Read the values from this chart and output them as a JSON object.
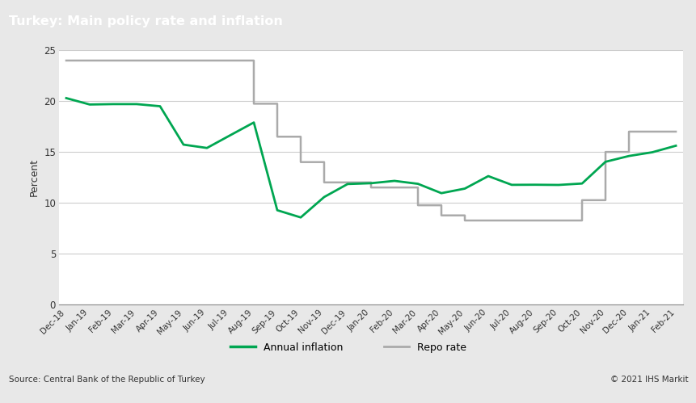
{
  "title": "Turkey: Main policy rate and inflation",
  "ylabel": "Percent",
  "source": "Source: Central Bank of the Republic of Turkey",
  "copyright": "© 2021 IHS Markit",
  "title_bg_color": "#787878",
  "title_text_color": "#ffffff",
  "plot_bg_color": "#ffffff",
  "outer_bg_color": "#e8e8e8",
  "ylim": [
    0,
    25
  ],
  "yticks": [
    0,
    5,
    10,
    15,
    20,
    25
  ],
  "inflation_color": "#00a651",
  "repo_color": "#aaaaaa",
  "x_labels": [
    "Dec-18",
    "Jan-19",
    "Feb-19",
    "Mar-19",
    "Apr-19",
    "May-19",
    "Jun-19",
    "Jul-19",
    "Aug-19",
    "Sep-19",
    "Oct-19",
    "Nov-19",
    "Dec-19",
    "Jan-20",
    "Feb-20",
    "Mar-20",
    "Apr-20",
    "May-20",
    "Jun-20",
    "Jul-20",
    "Aug-20",
    "Sep-20",
    "Oct-20",
    "Nov-20",
    "Dec-20",
    "Jan-21",
    "Feb-21"
  ],
  "inflation_values": [
    20.3,
    19.67,
    19.71,
    19.71,
    19.5,
    15.72,
    15.39,
    16.65,
    17.9,
    9.26,
    8.55,
    10.56,
    11.84,
    11.92,
    12.15,
    11.86,
    10.94,
    11.39,
    12.62,
    11.76,
    11.77,
    11.75,
    11.89,
    14.03,
    14.6,
    14.97,
    15.61
  ],
  "repo_rate": [
    24.0,
    24.0,
    24.0,
    24.0,
    24.0,
    24.0,
    24.0,
    24.0,
    19.75,
    16.5,
    14.0,
    12.0,
    12.0,
    11.5,
    11.5,
    9.75,
    8.75,
    8.25,
    8.25,
    8.25,
    8.25,
    8.25,
    10.25,
    15.0,
    17.0,
    17.0,
    17.0
  ]
}
